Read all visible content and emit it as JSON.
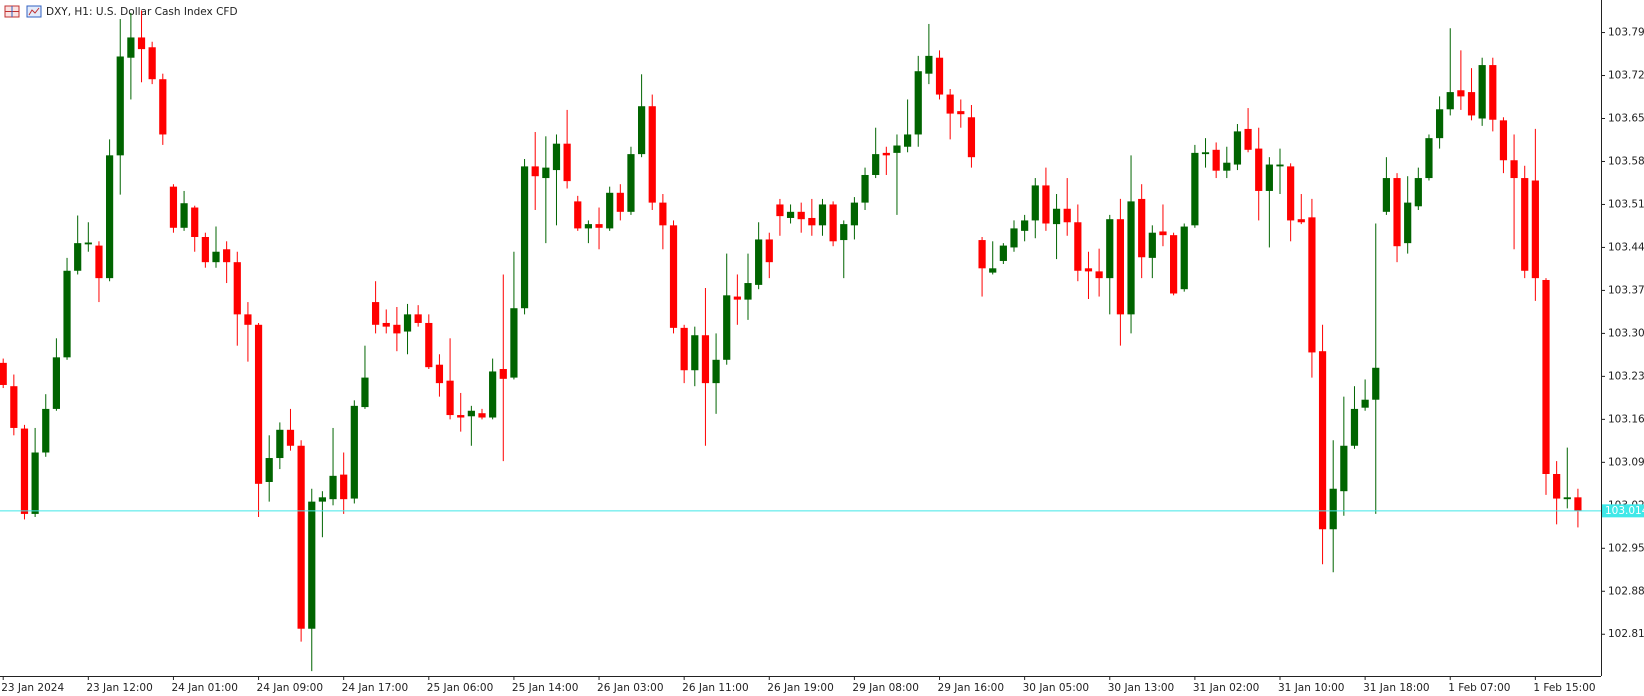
{
  "chart_data": {
    "type": "candlestick",
    "title": "DXY, H1: U.S. Dollar Cash Index CFD",
    "up_color": "#006400",
    "down_color": "#ff0000",
    "last_price": 103.014,
    "last_price_color": "#40e8e8",
    "ylim": [
      102.745,
      103.846
    ],
    "yticks": [
      103.793,
      103.723,
      103.653,
      103.583,
      103.513,
      103.443,
      103.373,
      103.303,
      103.233,
      103.163,
      103.093,
      103.023,
      102.953,
      102.883,
      102.813
    ],
    "categories": [
      "23 Jan 2024",
      null,
      null,
      null,
      null,
      null,
      null,
      null,
      "23 Jan 12:00",
      null,
      null,
      null,
      null,
      null,
      null,
      null,
      "24 Jan 01:00",
      null,
      null,
      null,
      null,
      null,
      null,
      null,
      "24 Jan 09:00",
      null,
      null,
      null,
      null,
      null,
      null,
      null,
      "24 Jan 17:00",
      null,
      null,
      null,
      null,
      null,
      null,
      null,
      "25 Jan 06:00",
      null,
      null,
      null,
      null,
      null,
      null,
      null,
      "25 Jan 14:00",
      null,
      null,
      null,
      null,
      null,
      null,
      null,
      "26 Jan 03:00",
      null,
      null,
      null,
      null,
      null,
      null,
      null,
      "26 Jan 11:00",
      null,
      null,
      null,
      null,
      null,
      null,
      null,
      "26 Jan 19:00",
      null,
      null,
      null,
      null,
      null,
      null,
      null,
      "29 Jan 08:00",
      null,
      null,
      null,
      null,
      null,
      null,
      null,
      "29 Jan 16:00",
      null,
      null,
      null,
      null,
      null,
      null,
      null,
      "30 Jan 05:00",
      null,
      null,
      null,
      null,
      null,
      null,
      null,
      "30 Jan 13:00",
      null,
      null,
      null,
      null,
      null,
      null,
      null,
      "31 Jan 02:00",
      null,
      null,
      null,
      null,
      null,
      null,
      null,
      "31 Jan 10:00",
      null,
      null,
      null,
      null,
      null,
      null,
      null,
      "31 Jan 18:00",
      null,
      null,
      null,
      null,
      null,
      null,
      null,
      "1 Feb 07:00",
      null,
      null,
      null,
      null,
      null,
      null,
      null,
      "1 Feb 15:00",
      null,
      null,
      null,
      null
    ],
    "ohlc": [
      [
        103.255,
        103.262,
        103.214,
        103.219
      ],
      [
        103.217,
        103.236,
        103.137,
        103.149
      ],
      [
        103.148,
        103.154,
        103.0,
        103.009
      ],
      [
        103.009,
        103.149,
        103.004,
        103.109
      ],
      [
        103.109,
        103.204,
        103.102,
        103.18
      ],
      [
        103.18,
        103.295,
        103.177,
        103.264
      ],
      [
        103.264,
        103.426,
        103.26,
        103.405
      ],
      [
        103.405,
        103.495,
        103.399,
        103.45
      ],
      [
        103.448,
        103.484,
        103.436,
        103.451
      ],
      [
        103.446,
        103.453,
        103.354,
        103.393
      ],
      [
        103.393,
        103.619,
        103.388,
        103.593
      ],
      [
        103.593,
        103.815,
        103.529,
        103.754
      ],
      [
        103.752,
        103.825,
        103.684,
        103.785
      ],
      [
        103.785,
        103.829,
        103.712,
        103.766
      ],
      [
        103.769,
        103.778,
        103.709,
        103.717
      ],
      [
        103.717,
        103.726,
        103.61,
        103.627
      ],
      [
        103.542,
        103.546,
        103.467,
        103.475
      ],
      [
        103.475,
        103.535,
        103.47,
        103.515
      ],
      [
        103.508,
        103.511,
        103.436,
        103.46
      ],
      [
        103.46,
        103.467,
        103.41,
        103.419
      ],
      [
        103.419,
        103.477,
        103.41,
        103.436
      ],
      [
        103.44,
        103.453,
        103.385,
        103.419
      ],
      [
        103.419,
        103.436,
        103.283,
        103.334
      ],
      [
        103.334,
        103.354,
        103.257,
        103.317
      ],
      [
        103.317,
        103.32,
        103.004,
        103.058
      ],
      [
        103.061,
        103.137,
        103.029,
        103.1
      ],
      [
        103.1,
        103.158,
        103.082,
        103.146
      ],
      [
        103.146,
        103.18,
        103.112,
        103.12
      ],
      [
        103.12,
        103.129,
        102.801,
        102.822
      ],
      [
        102.822,
        103.05,
        102.753,
        103.029
      ],
      [
        103.029,
        103.046,
        102.971,
        103.036
      ],
      [
        103.033,
        103.149,
        103.023,
        103.071
      ],
      [
        103.073,
        103.109,
        103.009,
        103.033
      ],
      [
        103.034,
        103.194,
        103.026,
        103.185
      ],
      [
        103.183,
        103.283,
        103.18,
        103.231
      ],
      [
        103.354,
        103.388,
        103.303,
        103.317
      ],
      [
        103.32,
        103.342,
        103.303,
        103.314
      ],
      [
        103.317,
        103.346,
        103.274,
        103.303
      ],
      [
        103.306,
        103.351,
        103.269,
        103.334
      ],
      [
        103.334,
        103.349,
        103.314,
        103.32
      ],
      [
        103.32,
        103.334,
        103.245,
        103.248
      ],
      [
        103.252,
        103.269,
        103.2,
        103.222
      ],
      [
        103.226,
        103.295,
        103.163,
        103.17
      ],
      [
        103.17,
        103.206,
        103.143,
        103.166
      ],
      [
        103.168,
        103.185,
        103.12,
        103.177
      ],
      [
        103.173,
        103.18,
        103.163,
        103.166
      ],
      [
        103.166,
        103.262,
        103.163,
        103.241
      ],
      [
        103.245,
        103.399,
        103.095,
        103.229
      ],
      [
        103.231,
        103.436,
        103.228,
        103.344
      ],
      [
        103.344,
        103.587,
        103.334,
        103.575
      ],
      [
        103.575,
        103.631,
        103.504,
        103.559
      ],
      [
        103.556,
        103.624,
        103.45,
        103.573
      ],
      [
        103.569,
        103.627,
        103.479,
        103.612
      ],
      [
        103.612,
        103.667,
        103.539,
        103.551
      ],
      [
        103.518,
        103.527,
        103.47,
        103.474
      ],
      [
        103.474,
        103.487,
        103.45,
        103.481
      ],
      [
        103.481,
        103.508,
        103.44,
        103.475
      ],
      [
        103.474,
        103.542,
        103.47,
        103.532
      ],
      [
        103.532,
        103.546,
        103.487,
        103.501
      ],
      [
        103.501,
        103.607,
        103.496,
        103.595
      ],
      [
        103.595,
        103.725,
        103.59,
        103.673
      ],
      [
        103.673,
        103.692,
        103.504,
        103.516
      ],
      [
        103.516,
        103.53,
        103.44,
        103.479
      ],
      [
        103.479,
        103.487,
        103.303,
        103.312
      ],
      [
        103.312,
        103.317,
        103.222,
        103.243
      ],
      [
        103.243,
        103.314,
        103.217,
        103.3
      ],
      [
        103.3,
        103.377,
        103.12,
        103.222
      ],
      [
        103.222,
        103.303,
        103.172,
        103.26
      ],
      [
        103.26,
        103.433,
        103.252,
        103.365
      ],
      [
        103.363,
        103.399,
        103.317,
        103.358
      ],
      [
        103.358,
        103.433,
        103.325,
        103.385
      ],
      [
        103.382,
        103.484,
        103.375,
        103.456
      ],
      [
        103.456,
        103.467,
        103.393,
        103.419
      ],
      [
        103.513,
        103.522,
        103.462,
        103.494
      ],
      [
        103.491,
        103.513,
        103.482,
        103.501
      ],
      [
        103.501,
        103.516,
        103.467,
        103.489
      ],
      [
        103.491,
        103.522,
        103.462,
        103.479
      ],
      [
        103.479,
        103.522,
        103.462,
        103.513
      ],
      [
        103.513,
        103.518,
        103.445,
        103.453
      ],
      [
        103.455,
        103.487,
        103.393,
        103.481
      ],
      [
        103.479,
        103.525,
        103.456,
        103.516
      ],
      [
        103.516,
        103.573,
        103.504,
        103.561
      ],
      [
        103.561,
        103.638,
        103.556,
        103.595
      ],
      [
        103.597,
        103.607,
        103.561,
        103.593
      ],
      [
        103.597,
        103.627,
        103.496,
        103.609
      ],
      [
        103.607,
        103.684,
        103.598,
        103.627
      ],
      [
        103.627,
        103.755,
        103.607,
        103.73
      ],
      [
        103.726,
        103.807,
        103.709,
        103.755
      ],
      [
        103.752,
        103.764,
        103.684,
        103.692
      ],
      [
        103.692,
        103.701,
        103.619,
        103.661
      ],
      [
        103.665,
        103.684,
        103.638,
        103.66
      ],
      [
        103.655,
        103.675,
        103.573,
        103.59
      ],
      [
        103.455,
        103.46,
        103.363,
        103.409
      ],
      [
        103.402,
        103.453,
        103.399,
        103.409
      ],
      [
        103.421,
        103.45,
        103.416,
        103.446
      ],
      [
        103.443,
        103.487,
        103.436,
        103.474
      ],
      [
        103.47,
        103.496,
        103.453,
        103.487
      ],
      [
        103.487,
        103.556,
        103.458,
        103.544
      ],
      [
        103.544,
        103.573,
        103.47,
        103.482
      ],
      [
        103.481,
        103.53,
        103.424,
        103.506
      ],
      [
        103.506,
        103.556,
        103.462,
        103.484
      ],
      [
        103.484,
        103.513,
        103.388,
        103.405
      ],
      [
        103.409,
        103.436,
        103.359,
        103.404
      ],
      [
        103.404,
        103.441,
        103.363,
        103.393
      ],
      [
        103.393,
        103.496,
        103.334,
        103.489
      ],
      [
        103.489,
        103.522,
        103.283,
        103.334
      ],
      [
        103.334,
        103.593,
        103.303,
        103.518
      ],
      [
        103.522,
        103.546,
        103.393,
        103.427
      ],
      [
        103.426,
        103.479,
        103.393,
        103.467
      ],
      [
        103.469,
        103.513,
        103.445,
        103.463
      ],
      [
        103.463,
        103.467,
        103.365,
        103.368
      ],
      [
        103.375,
        103.482,
        103.371,
        103.477
      ],
      [
        103.479,
        103.61,
        103.475,
        103.597
      ],
      [
        103.595,
        103.621,
        103.573,
        103.598
      ],
      [
        103.602,
        103.614,
        103.556,
        103.568
      ],
      [
        103.568,
        103.607,
        103.556,
        103.581
      ],
      [
        103.578,
        103.644,
        103.569,
        103.632
      ],
      [
        103.636,
        103.67,
        103.598,
        103.602
      ],
      [
        103.604,
        103.638,
        103.487,
        103.535
      ],
      [
        103.535,
        103.59,
        103.443,
        103.578
      ],
      [
        103.575,
        103.604,
        103.53,
        103.578
      ],
      [
        103.575,
        103.58,
        103.453,
        103.487
      ],
      [
        103.489,
        103.53,
        103.481,
        103.484
      ],
      [
        103.492,
        103.522,
        103.231,
        103.272
      ],
      [
        103.274,
        103.317,
        102.927,
        102.984
      ],
      [
        102.984,
        103.129,
        102.914,
        103.05
      ],
      [
        103.046,
        103.2,
        103.006,
        103.12
      ],
      [
        103.12,
        103.217,
        103.115,
        103.18
      ],
      [
        103.182,
        103.228,
        103.177,
        103.195
      ],
      [
        103.195,
        103.482,
        103.009,
        103.247
      ],
      [
        103.501,
        103.59,
        103.496,
        103.556
      ],
      [
        103.556,
        103.564,
        103.419,
        103.445
      ],
      [
        103.45,
        103.559,
        103.433,
        103.516
      ],
      [
        103.51,
        103.573,
        103.504,
        103.556
      ],
      [
        103.556,
        103.627,
        103.552,
        103.621
      ],
      [
        103.621,
        103.689,
        103.604,
        103.668
      ],
      [
        103.668,
        103.8,
        103.658,
        103.696
      ],
      [
        103.699,
        103.764,
        103.667,
        103.689
      ],
      [
        103.696,
        103.735,
        103.65,
        103.658
      ],
      [
        103.653,
        103.752,
        103.641,
        103.74
      ],
      [
        103.74,
        103.752,
        103.632,
        103.651
      ],
      [
        103.65,
        103.655,
        103.564,
        103.585
      ],
      [
        103.585,
        103.627,
        103.44,
        103.556
      ],
      [
        103.556,
        103.576,
        103.393,
        103.405
      ],
      [
        103.552,
        103.636,
        103.356,
        103.393
      ],
      [
        103.39,
        103.393,
        103.04,
        103.074
      ],
      [
        103.074,
        103.095,
        102.992,
        103.034
      ],
      [
        103.033,
        103.117,
        103.018,
        103.036
      ],
      [
        103.036,
        103.05,
        102.987,
        103.014
      ]
    ]
  }
}
